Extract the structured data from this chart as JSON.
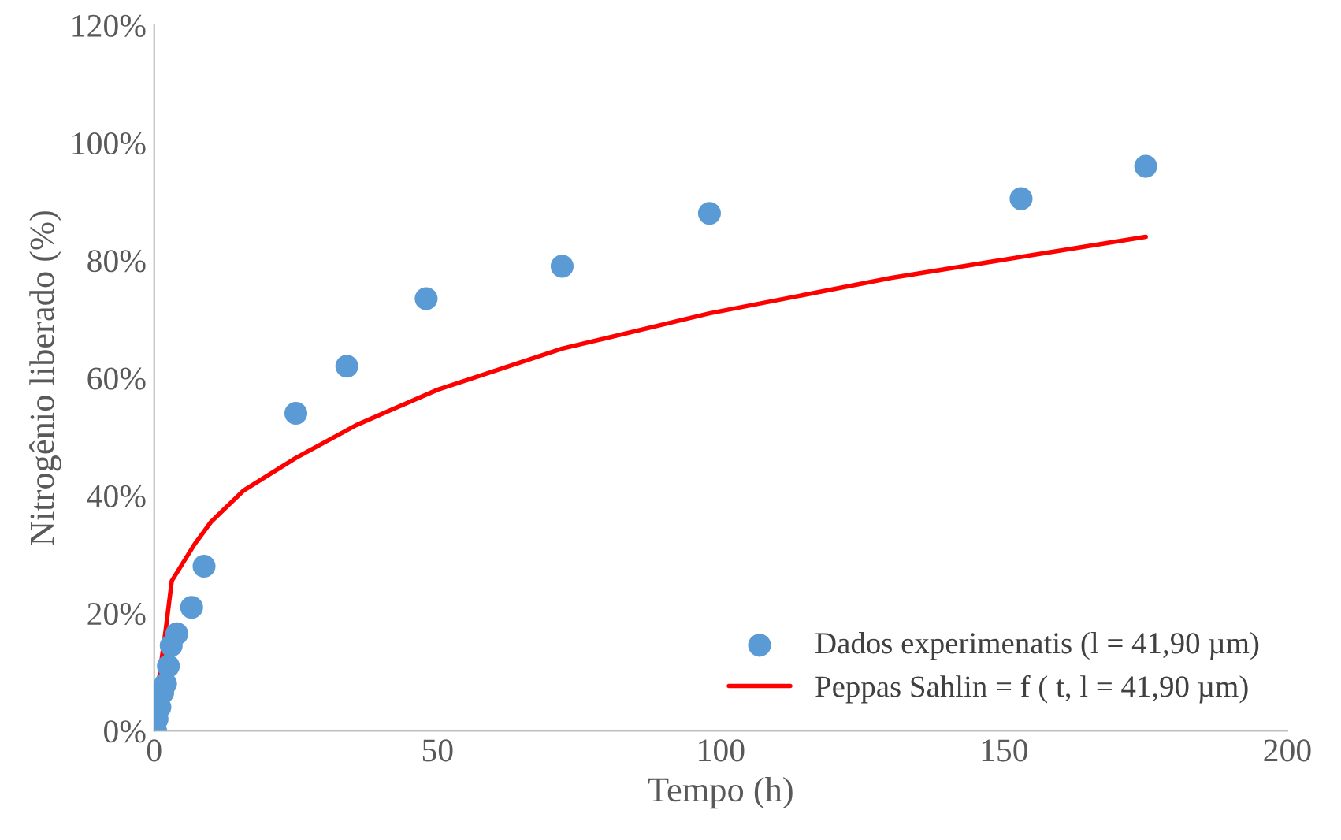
{
  "chart_data": {
    "type": "scatter",
    "xlabel": "Tempo (h)",
    "ylabel": "Nitrogênio liberado (%)",
    "xlim": [
      0,
      200
    ],
    "xticks": [
      0,
      50,
      100,
      150,
      200
    ],
    "ylim": [
      0,
      120
    ],
    "yticks": [
      {
        "value": 0,
        "label": "0%"
      },
      {
        "value": 20,
        "label": "20%"
      },
      {
        "value": 40,
        "label": "40%"
      },
      {
        "value": 60,
        "label": "60%"
      },
      {
        "value": 80,
        "label": "80%"
      },
      {
        "value": 100,
        "label": "100%"
      },
      {
        "value": 120,
        "label": "120%"
      }
    ],
    "grid": false,
    "legend": "bottom right",
    "series": [
      {
        "name": "Dados experimenatis (l = 41,90 µm)",
        "marker": "circle",
        "color": "#5b9bd5",
        "x": [
          0.25,
          0.5,
          1,
          1.5,
          2,
          2.5,
          3,
          4,
          6.6,
          8.8,
          25,
          34,
          48,
          72,
          98,
          153,
          175
        ],
        "values": [
          0,
          2,
          4,
          6.5,
          8,
          11,
          14.5,
          16.5,
          21,
          28,
          54,
          62,
          73.5,
          79,
          88,
          90.5,
          96
        ]
      },
      {
        "name": "Peppas Sahlin = f ( t, l = 41,90 µm)",
        "type": "line",
        "marker": "none",
        "color": "#ff0000",
        "x": [
          0,
          1,
          2,
          3.1,
          7.1,
          10,
          15.7,
          25,
          35.7,
          50,
          72,
          98,
          130,
          153,
          175
        ],
        "values": [
          0,
          10,
          17,
          25.5,
          31.7,
          35.5,
          40.8,
          46.4,
          52,
          58,
          65,
          71,
          77,
          80.6,
          84
        ]
      }
    ]
  }
}
